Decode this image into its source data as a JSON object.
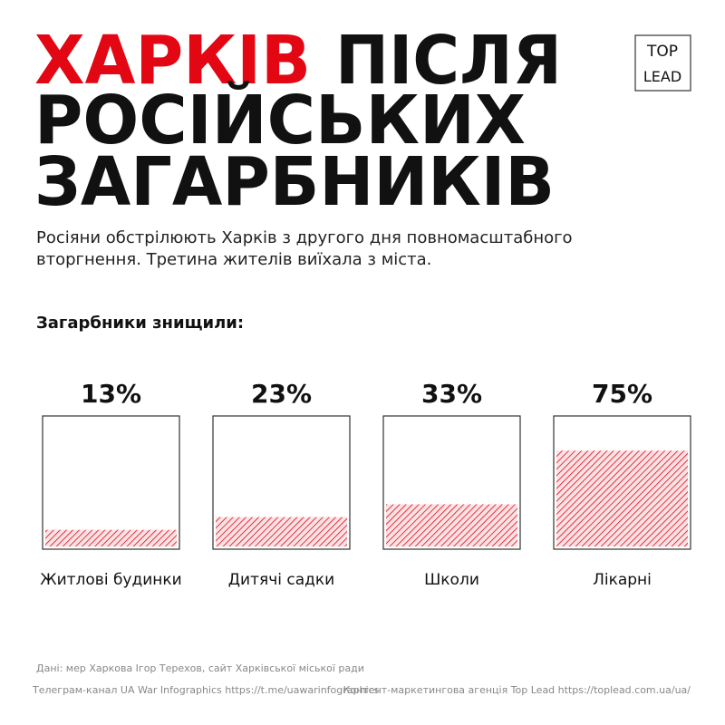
{
  "chart_data": {
    "type": "bar",
    "title_highlight": "ХАРКІВ",
    "title_lines": [
      "ПІСЛЯ",
      "РОСІЙСЬКИХ",
      "ЗАГАРБНИКІВ"
    ],
    "subtitle_lines": [
      "Росіяни обстрілюють Харків з другого дня повномасштабного",
      "вторгнення. Третина жителів виїхала з міста."
    ],
    "logo": [
      "TOP",
      "LEAD"
    ],
    "section_label": "Загарбники знищили:",
    "categories": [
      "Житлові будинки",
      "Дитячі садки",
      "Школи",
      "Лікарні"
    ],
    "values": [
      13,
      23,
      33,
      75
    ],
    "value_labels": [
      "13%",
      "23%",
      "33%",
      "75%"
    ],
    "ylim": [
      0,
      100
    ],
    "color": "#e30613",
    "highlight_color": "#e30613",
    "footer": {
      "source": "Дані: мер Харкова Ігор Терехов, сайт Харківської міської ради",
      "telegram": "Телеграм-канал UA War Infographics https://t.me/uawarinfographics",
      "agency": "Контент-маркетингова агенція Top Lead https://toplead.com.ua/ua/"
    }
  }
}
